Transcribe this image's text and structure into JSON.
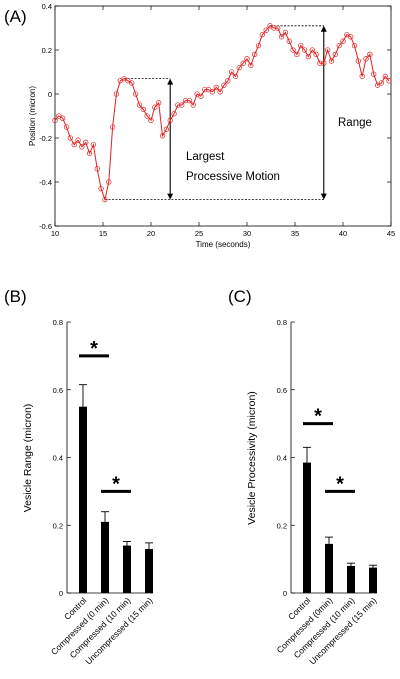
{
  "chart_data": [
    {
      "panel": "(A)",
      "type": "line",
      "xlabel": "Time (seconds)",
      "ylabel": "Position (micron)",
      "xlim": [
        10,
        45
      ],
      "ylim": [
        -0.6,
        0.4
      ],
      "xticks": [
        10,
        15,
        20,
        25,
        30,
        35,
        40,
        45
      ],
      "yticks": [
        -0.6,
        -0.4,
        -0.2,
        0,
        0.2,
        0.4
      ],
      "yticklabels": [
        "-0.6",
        "-0.4",
        "-0.2",
        "0",
        "0.2",
        "0.4"
      ],
      "grid": false,
      "line_color": "#e02020",
      "x": [
        10.0,
        10.4,
        10.8,
        11.2,
        11.6,
        12.0,
        12.4,
        12.8,
        13.2,
        13.6,
        14.0,
        14.4,
        14.8,
        15.2,
        15.6,
        16.0,
        16.4,
        16.8,
        17.2,
        17.6,
        18.0,
        18.4,
        18.8,
        19.2,
        19.6,
        20.0,
        20.4,
        20.8,
        21.2,
        21.6,
        22.0,
        22.4,
        22.8,
        23.2,
        23.6,
        24.0,
        24.4,
        24.8,
        25.2,
        25.6,
        26.0,
        26.4,
        26.8,
        27.2,
        27.6,
        28.0,
        28.4,
        28.8,
        29.2,
        29.6,
        30.0,
        30.4,
        30.8,
        31.2,
        31.6,
        32.0,
        32.4,
        32.8,
        33.2,
        33.6,
        34.0,
        34.4,
        34.8,
        35.2,
        35.6,
        36.0,
        36.4,
        36.8,
        37.2,
        37.6,
        38.0,
        38.4,
        38.8,
        39.2,
        39.6,
        40.0,
        40.4,
        40.8,
        41.2,
        41.6,
        42.0,
        42.4,
        42.8,
        43.2,
        43.6,
        44.0,
        44.4,
        44.8
      ],
      "y": [
        -0.12,
        -0.1,
        -0.11,
        -0.15,
        -0.2,
        -0.23,
        -0.21,
        -0.24,
        -0.22,
        -0.27,
        -0.23,
        -0.34,
        -0.43,
        -0.48,
        -0.4,
        -0.15,
        0.0,
        0.06,
        0.07,
        0.06,
        0.05,
        0.0,
        -0.05,
        -0.07,
        -0.1,
        -0.12,
        -0.06,
        -0.04,
        -0.19,
        -0.16,
        -0.12,
        -0.09,
        -0.05,
        -0.05,
        -0.03,
        -0.03,
        -0.05,
        0.0,
        -0.01,
        0.02,
        0.02,
        0.01,
        0.03,
        0.01,
        0.04,
        0.06,
        0.1,
        0.08,
        0.12,
        0.14,
        0.16,
        0.13,
        0.18,
        0.22,
        0.27,
        0.29,
        0.31,
        0.3,
        0.3,
        0.26,
        0.28,
        0.24,
        0.2,
        0.18,
        0.22,
        0.2,
        0.17,
        0.2,
        0.18,
        0.14,
        0.14,
        0.2,
        0.15,
        0.18,
        0.22,
        0.24,
        0.27,
        0.26,
        0.22,
        0.15,
        0.08,
        0.16,
        0.18,
        0.09,
        0.04,
        0.05,
        0.08,
        0.06
      ],
      "annotations": [
        {
          "text": "Largest",
          "kind": "label"
        },
        {
          "text": "Processive Motion",
          "kind": "label"
        },
        {
          "text": "Range",
          "kind": "label"
        }
      ],
      "largest_processive": {
        "x": 22,
        "y_low": -0.48,
        "y_high": 0.07,
        "low_from_x": 15.2,
        "high_from_x": 17.2
      },
      "range": {
        "x": 38,
        "y_low": -0.48,
        "y_high": 0.31,
        "high_from_x": 32.4
      }
    },
    {
      "panel": "(B)",
      "type": "bar",
      "ylabel": "Vesicle Range (micron)",
      "ylim": [
        0,
        0.8
      ],
      "yticks": [
        0,
        0.2,
        0.4,
        0.6,
        0.8
      ],
      "yticklabels": [
        "0",
        "0.2",
        "0.4",
        "0.6",
        "0.8"
      ],
      "categories": [
        "Control",
        "Compressed (0 min)",
        "Compressed (10 min)",
        "Uncompressed (15 min)"
      ],
      "values": [
        0.55,
        0.21,
        0.14,
        0.13
      ],
      "errors": [
        0.065,
        0.03,
        0.012,
        0.018
      ],
      "significance": [
        {
          "from": 0,
          "to": 1,
          "y": 0.7,
          "label": "*"
        },
        {
          "from": 1,
          "to": 2,
          "y": 0.3,
          "label": "*"
        }
      ]
    },
    {
      "panel": "(C)",
      "type": "bar",
      "ylabel": "Vesicle Processivity (micron)",
      "ylim": [
        0,
        0.8
      ],
      "yticks": [
        0,
        0.2,
        0.4,
        0.6,
        0.8
      ],
      "yticklabels": [
        "0",
        "0.2",
        "0.4",
        "0.6",
        "0.8"
      ],
      "categories": [
        "Control",
        "Compressed (0min)",
        "Compressed (10 min)",
        "Uncompressed (15 min)"
      ],
      "values": [
        0.385,
        0.145,
        0.08,
        0.075
      ],
      "errors": [
        0.045,
        0.02,
        0.008,
        0.007
      ],
      "significance": [
        {
          "from": 0,
          "to": 1,
          "y": 0.5,
          "label": "*"
        },
        {
          "from": 1,
          "to": 2,
          "y": 0.3,
          "label": "*"
        }
      ]
    }
  ]
}
